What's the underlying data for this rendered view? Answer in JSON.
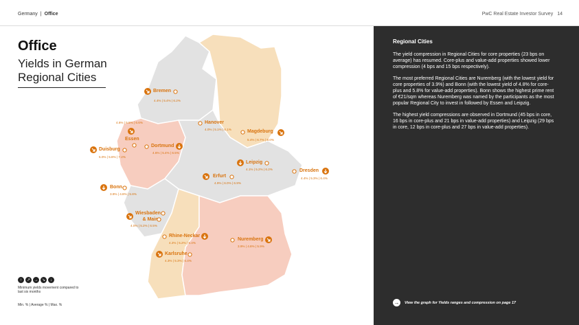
{
  "header": {
    "breadcrumb_parent": "Germany",
    "breadcrumb_current": "Office",
    "survey_title": "PwC Real Estate Investor Survey",
    "page_number": "14"
  },
  "title": "Office",
  "subtitle": "Yields in German Regional Cities",
  "colors": {
    "accent": "#d9730d",
    "region_gray": "#e2e2e2",
    "region_pink": "#f7cdbf",
    "region_peach": "#f7dfbb",
    "panel_bg": "#2d2d2d"
  },
  "cities": [
    {
      "name": "Bremen",
      "values": "4.4% | 5.4% | 6.2%",
      "icon": "arrow-down-right-icon"
    },
    {
      "name": "Hanover",
      "values": "4.0% | 5.1% | 6.1%",
      "icon": "none"
    },
    {
      "name": "Magdeburg",
      "values": "5.4% | 6.7% | 8.0%",
      "icon": "arrow-down-right-icon"
    },
    {
      "name": "Essen",
      "values": "4.6% | 5.5% | 6.6%",
      "icon": "arrow-down-right-icon"
    },
    {
      "name": "Dortmund",
      "values": "4.6% | 5.4% | 6.5%",
      "icon": "arrow-down-icon"
    },
    {
      "name": "Duisburg",
      "values": "5.0% | 5.8% | 7.2%",
      "icon": "arrow-down-right-icon"
    },
    {
      "name": "Leipzig",
      "values": "4.1% | 5.2% | 6.2%",
      "icon": "arrow-down-icon"
    },
    {
      "name": "Dresden",
      "values": "4.4% | 5.3% | 6.4%",
      "icon": "arrow-down-icon"
    },
    {
      "name": "Erfurt",
      "values": "4.9% | 6.0% | 6.9%",
      "icon": "arrow-down-right-icon"
    },
    {
      "name": "Bonn",
      "values": "3.9% | 4.8% | 5.8%",
      "icon": "arrow-down-icon"
    },
    {
      "name": "Wiesbaden\n& Mainz",
      "values": "4.0% | 5.2% | 6.5%",
      "icon": "arrow-down-right-icon"
    },
    {
      "name": "Rhine-Neckar",
      "values": "4.2% | 5.2% | 6.4%",
      "icon": "arrow-down-icon"
    },
    {
      "name": "Nuremberg",
      "values": "3.9% | 4.8% | 5.9%",
      "icon": "arrow-down-right-icon"
    },
    {
      "name": "Karlsruhe",
      "values": "4.3% | 5.3% | 6.4%",
      "icon": "arrow-down-right-icon"
    }
  ],
  "legend": {
    "icons": [
      "arrow-up-icon",
      "arrow-up-right-icon",
      "arrow-right-icon",
      "arrow-down-right-icon",
      "arrow-down-icon"
    ],
    "text": "Minimum yields movement compared to last six months",
    "min_avg_max": "Min. % | Average % | Max. %"
  },
  "panel": {
    "heading": "Regional Cities",
    "p1": "The yield compression in Regional Cities for core properties (23 bps on average) has resumed. Core-plus and value-add properties showed lower compression (4 bps and 15 bps respectively).",
    "p2": "The most preferred Regional Cities are Nuremberg (with the lowest yield for core properties of 3.9%) and Bonn (with the lowest yield of 4.8% for core-plus and 5.8% for value-add properties). Bonn shows the highest prime rent of €21/sqm whereas Nuremberg was named by the participants as the most popular Regional City to invest in followed by Essen and Leipzig.",
    "p3": "The highest yield compressions are observed in Dortmund (45 bps in core, 16 bps in core-plus and 21 bps in value-add properties) and Leipzig (29 bps in core, 12 bps in core-plus and 27 bps in value-add properties).",
    "link_text": "View the graph for Yields ranges and compression on page 17"
  }
}
